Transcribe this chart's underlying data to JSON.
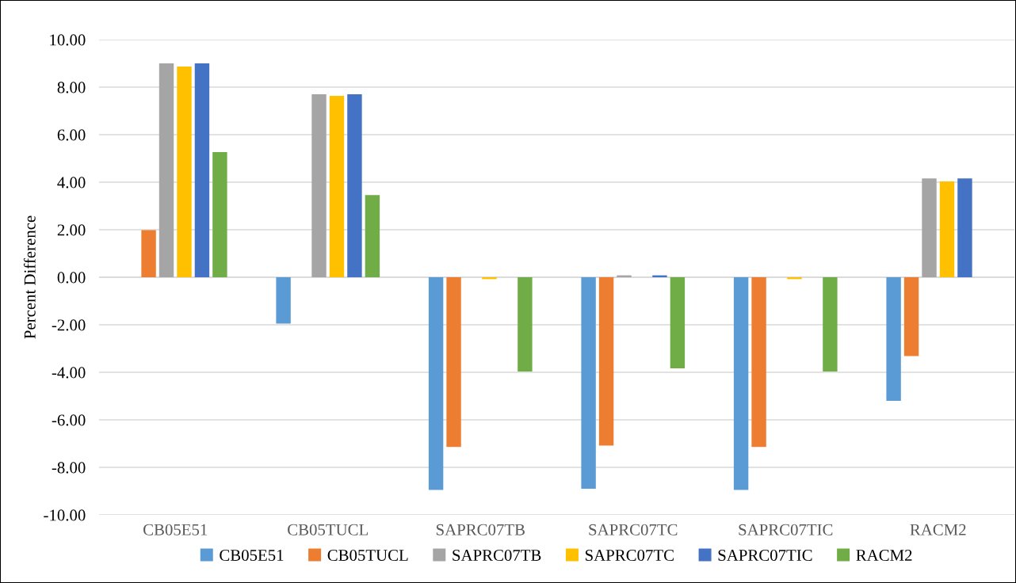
{
  "chart_data": {
    "type": "bar",
    "ylabel": "Percent Difference",
    "categories": [
      "CB05E51",
      "CB05TUCL",
      "SAPRC07TB",
      "SAPRC07TC",
      "SAPRC07TIC",
      "RACM2"
    ],
    "series": [
      {
        "name": "CB05E51",
        "color": "#5b9bd5",
        "values": [
          0,
          -1.95,
          -8.95,
          -8.9,
          -8.95,
          -5.2
        ]
      },
      {
        "name": "CB05TUCL",
        "color": "#ed7d31",
        "values": [
          1.98,
          0,
          -7.14,
          -7.08,
          -7.14,
          -3.32
        ]
      },
      {
        "name": "SAPRC07TB",
        "color": "#a5a5a5",
        "values": [
          9.0,
          7.7,
          0,
          0.08,
          0,
          4.16
        ]
      },
      {
        "name": "SAPRC07TC",
        "color": "#ffc000",
        "values": [
          8.87,
          7.63,
          -0.08,
          0,
          -0.08,
          4.03
        ]
      },
      {
        "name": "SAPRC07TIC",
        "color": "#4472c4",
        "values": [
          9.0,
          7.7,
          0,
          0.08,
          0,
          4.16
        ]
      },
      {
        "name": "RACM2",
        "color": "#70ad47",
        "values": [
          5.27,
          3.46,
          -3.97,
          -3.83,
          -3.97,
          0
        ]
      }
    ],
    "ylim": [
      -10,
      10
    ],
    "yticks": [
      {
        "value": -10,
        "label": "-10.00"
      },
      {
        "value": -8,
        "label": "-8.00"
      },
      {
        "value": -6,
        "label": "-6.00"
      },
      {
        "value": -4,
        "label": "-4.00"
      },
      {
        "value": -2,
        "label": "-2.00"
      },
      {
        "value": 0,
        "label": "0.00"
      },
      {
        "value": 2,
        "label": "2.00"
      },
      {
        "value": 4,
        "label": "4.00"
      },
      {
        "value": 6,
        "label": "6.00"
      },
      {
        "value": 8,
        "label": "8.00"
      },
      {
        "value": 10,
        "label": "10.00"
      }
    ],
    "grid": "y",
    "legend": "bottom"
  }
}
